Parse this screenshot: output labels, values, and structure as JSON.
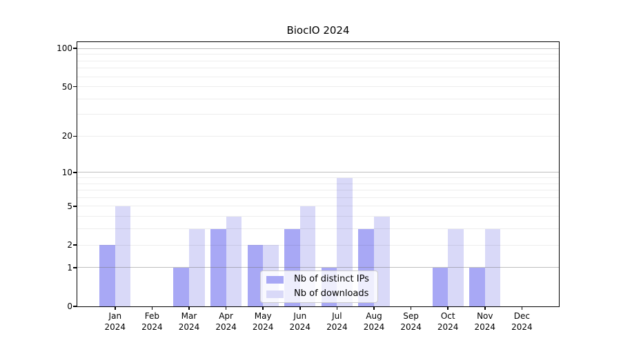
{
  "chart_data": {
    "type": "bar",
    "title": "BiocIO 2024",
    "categories": [
      "Jan 2024",
      "Feb 2024",
      "Mar 2024",
      "Apr 2024",
      "May 2024",
      "Jun 2024",
      "Jul 2024",
      "Aug 2024",
      "Sep 2024",
      "Oct 2024",
      "Nov 2024",
      "Dec 2024"
    ],
    "x_tick_top": [
      "Jan",
      "Feb",
      "Mar",
      "Apr",
      "May",
      "Jun",
      "Jul",
      "Aug",
      "Sep",
      "Oct",
      "Nov",
      "Dec"
    ],
    "x_tick_bottom": "2024",
    "series": [
      {
        "name": "Nb of distinct IPs",
        "color": "#a8a8f5",
        "values": [
          2,
          0,
          1,
          3,
          2,
          3,
          1,
          3,
          0,
          1,
          1,
          0
        ]
      },
      {
        "name": "Nb of downloads",
        "color": "#d9d9f8",
        "values": [
          5,
          0,
          3,
          4,
          2,
          5,
          9,
          4,
          0,
          3,
          3,
          0
        ]
      }
    ],
    "yscale": "log10(value+1)",
    "ylim": [
      0,
      110
    ],
    "yticks": [
      0,
      1,
      2,
      5,
      10,
      20,
      50,
      100
    ],
    "gridlines_minor": [
      2,
      3,
      4,
      5,
      6,
      7,
      8,
      9,
      20,
      30,
      40,
      50,
      60,
      70,
      80,
      90
    ],
    "gridlines_major": [
      1,
      10,
      100
    ],
    "grid": true,
    "legend_position": "lower center",
    "xlabel": "",
    "ylabel": ""
  },
  "legend": {
    "entries": [
      {
        "label": "Nb of distinct IPs"
      },
      {
        "label": "Nb of downloads"
      }
    ]
  },
  "colors": {
    "bar_distinct_ips": "#a8a8f5",
    "bar_downloads": "#d9d9f8",
    "axis": "#000000",
    "text": "#000000",
    "grid_minor": "rgba(0,0,0,0.07)",
    "grid_major": "rgba(110,110,110,0.45)",
    "legend_border": "#cccccc",
    "legend_background": "rgba(255,255,255,0.8)"
  }
}
